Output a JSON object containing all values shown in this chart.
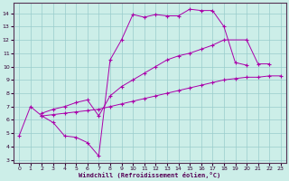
{
  "xlabel": "Windchill (Refroidissement éolien,°C)",
  "background_color": "#cceee8",
  "grid_color": "#99cccc",
  "line_color": "#aa00aa",
  "xlim": [
    -0.5,
    23.5
  ],
  "ylim": [
    2.8,
    14.8
  ],
  "xticks": [
    0,
    1,
    2,
    3,
    4,
    5,
    6,
    7,
    8,
    9,
    10,
    11,
    12,
    13,
    14,
    15,
    16,
    17,
    18,
    19,
    20,
    21,
    22,
    23
  ],
  "yticks": [
    3,
    4,
    5,
    6,
    7,
    8,
    9,
    10,
    11,
    12,
    13,
    14
  ],
  "line1": [
    [
      0,
      4.8
    ],
    [
      1,
      7.0
    ],
    [
      2,
      6.3
    ],
    [
      3,
      5.8
    ],
    [
      4,
      4.8
    ],
    [
      5,
      4.7
    ],
    [
      6,
      4.3
    ],
    [
      7,
      3.3
    ],
    [
      8,
      10.5
    ],
    [
      9,
      12.0
    ],
    [
      10,
      13.9
    ],
    [
      11,
      13.7
    ],
    [
      12,
      13.9
    ],
    [
      13,
      13.8
    ],
    [
      14,
      13.8
    ],
    [
      15,
      14.3
    ],
    [
      16,
      14.2
    ],
    [
      17,
      14.2
    ],
    [
      18,
      13.0
    ],
    [
      19,
      10.3
    ],
    [
      20,
      10.1
    ]
  ],
  "line2": [
    [
      2,
      6.5
    ],
    [
      3,
      6.8
    ],
    [
      4,
      7.0
    ],
    [
      5,
      7.3
    ],
    [
      6,
      7.5
    ],
    [
      7,
      6.3
    ],
    [
      8,
      7.8
    ],
    [
      9,
      8.5
    ],
    [
      10,
      9.0
    ],
    [
      11,
      9.5
    ],
    [
      12,
      10.0
    ],
    [
      13,
      10.5
    ],
    [
      14,
      10.8
    ],
    [
      15,
      11.0
    ],
    [
      16,
      11.3
    ],
    [
      17,
      11.6
    ],
    [
      18,
      12.0
    ],
    [
      20,
      12.0
    ],
    [
      21,
      10.2
    ],
    [
      22,
      10.2
    ]
  ],
  "line3": [
    [
      2,
      6.3
    ],
    [
      3,
      6.4
    ],
    [
      4,
      6.5
    ],
    [
      5,
      6.6
    ],
    [
      6,
      6.7
    ],
    [
      7,
      6.8
    ],
    [
      8,
      7.0
    ],
    [
      9,
      7.2
    ],
    [
      10,
      7.4
    ],
    [
      11,
      7.6
    ],
    [
      12,
      7.8
    ],
    [
      13,
      8.0
    ],
    [
      14,
      8.2
    ],
    [
      15,
      8.4
    ],
    [
      16,
      8.6
    ],
    [
      17,
      8.8
    ],
    [
      18,
      9.0
    ],
    [
      19,
      9.1
    ],
    [
      20,
      9.2
    ],
    [
      21,
      9.2
    ],
    [
      22,
      9.3
    ],
    [
      23,
      9.3
    ]
  ]
}
